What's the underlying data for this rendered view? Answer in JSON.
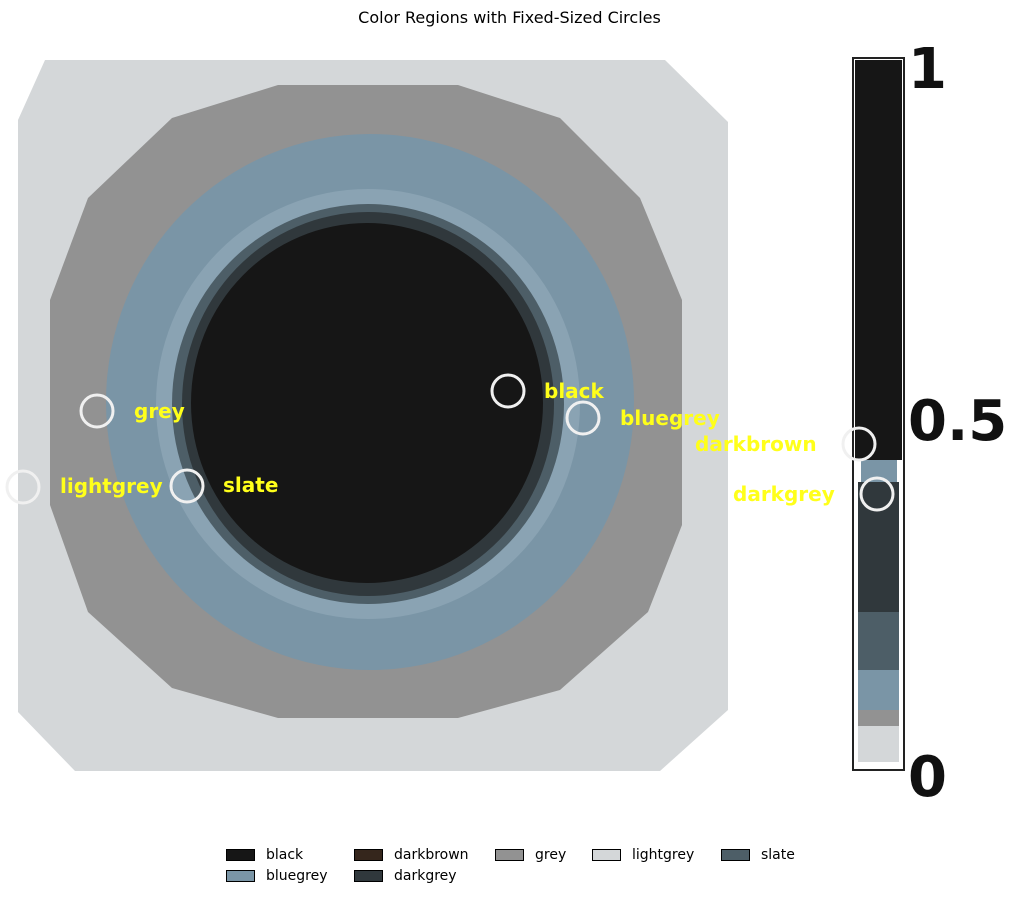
{
  "title": "Color Regions with Fixed-Sized Circles",
  "colors": {
    "black": "#161616",
    "darkbrown": "#35261c",
    "grey": "#929292",
    "lightgrey": "#d4d7d9",
    "slate": "#4d5e67",
    "bluegrey": "#7a95a6",
    "darkgrey": "#30383c",
    "circle": "#f0f0f0",
    "label": "#ffff1a"
  },
  "regions": [
    {
      "name": "black",
      "label": "black"
    },
    {
      "name": "bluegrey",
      "label": "bluegrey"
    },
    {
      "name": "darkbrown",
      "label": "darkbrown"
    },
    {
      "name": "darkgrey",
      "label": "darkgrey"
    },
    {
      "name": "grey",
      "label": "grey"
    },
    {
      "name": "lightgrey",
      "label": "lightgrey"
    },
    {
      "name": "slate",
      "label": "slate"
    }
  ],
  "scale_labels": {
    "top": "1",
    "middle": "0.5",
    "bottom": "0"
  },
  "legend": [
    {
      "label": "black",
      "color": "#161616"
    },
    {
      "label": "darkbrown",
      "color": "#35261c"
    },
    {
      "label": "grey",
      "color": "#929292"
    },
    {
      "label": "lightgrey",
      "color": "#d4d7d9"
    },
    {
      "label": "slate",
      "color": "#4d5e67"
    },
    {
      "label": "bluegrey",
      "color": "#7a95a6"
    },
    {
      "label": "darkgrey",
      "color": "#30383c"
    }
  ]
}
